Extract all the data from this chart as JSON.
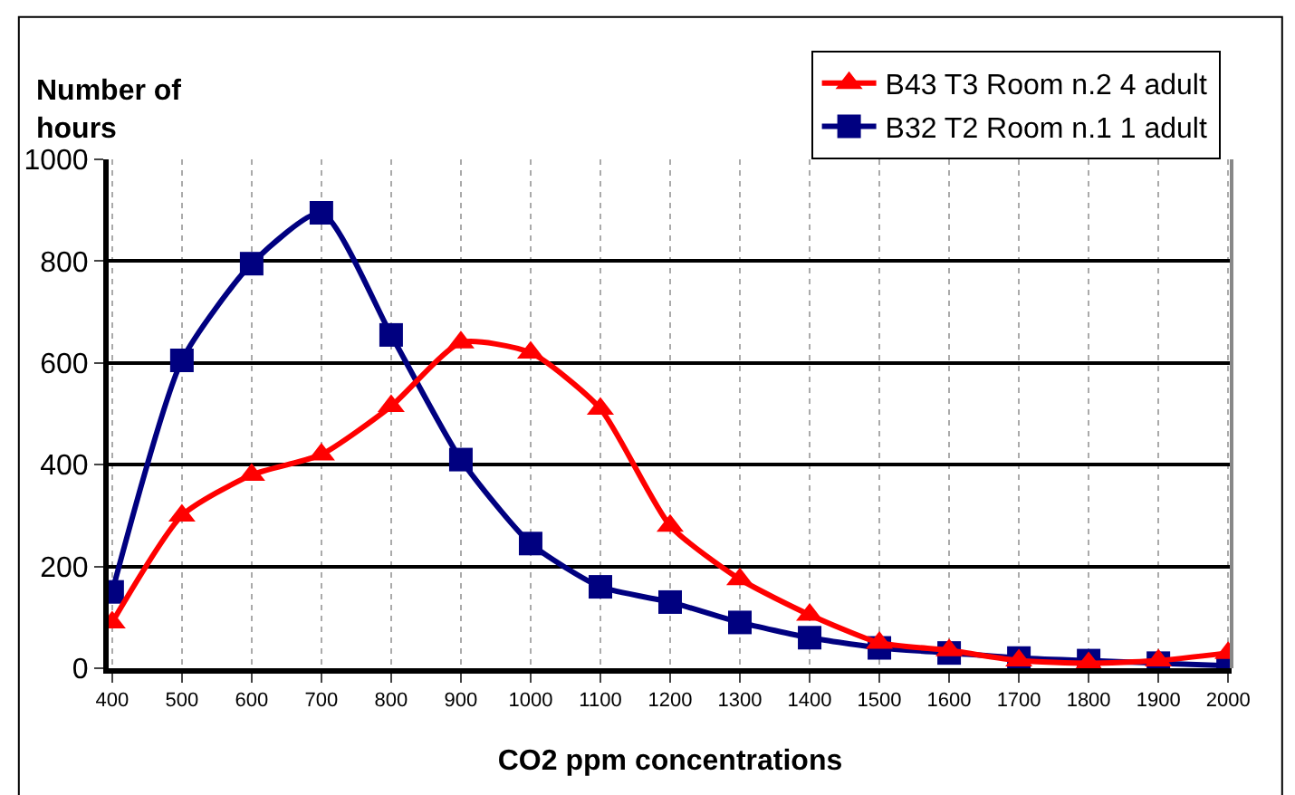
{
  "chart_data": {
    "type": "line",
    "ylabel": "Number of hours",
    "xlabel": "CO2 ppm concentrations",
    "categories": [
      "400",
      "500",
      "600",
      "700",
      "800",
      "900",
      "1000",
      "1100",
      "1200",
      "1300",
      "1400",
      "1500",
      "1600",
      "1700",
      "1800",
      "1900",
      "2000"
    ],
    "series": [
      {
        "name": "B43 T3 Room n.2 4 adult",
        "color": "#ff0000",
        "marker": "triangle",
        "values": [
          90,
          300,
          380,
          420,
          515,
          640,
          620,
          510,
          280,
          175,
          105,
          50,
          35,
          15,
          10,
          15,
          30
        ]
      },
      {
        "name": "B32 T2 Room n.1 1 adult",
        "color": "#000080",
        "marker": "square",
        "values": [
          150,
          605,
          795,
          895,
          655,
          410,
          245,
          160,
          130,
          90,
          60,
          40,
          30,
          20,
          15,
          10,
          5
        ]
      }
    ],
    "ylim": [
      0,
      1000
    ],
    "yticks": [
      0,
      200,
      400,
      600,
      800,
      1000
    ],
    "grid": true,
    "legend": "top right",
    "line_style": "solid"
  }
}
